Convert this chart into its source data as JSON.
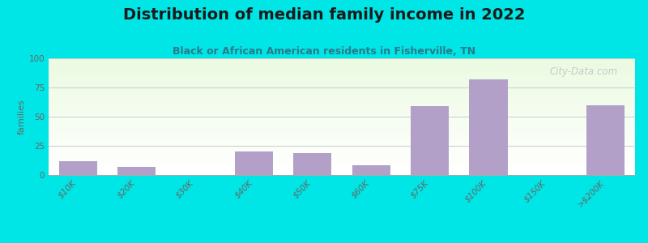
{
  "title": "Distribution of median family income in 2022",
  "subtitle": "Black or African American residents in Fisherville, TN",
  "ylabel": "families",
  "categories": [
    "$10K",
    "$20K",
    "$30K",
    "$40K",
    "$50K",
    "$60K",
    "$75K",
    "$100K",
    "$150K",
    ">$200K"
  ],
  "values": [
    12,
    7,
    0,
    20,
    19,
    8,
    59,
    82,
    0,
    60
  ],
  "bar_color": "#b3a0c8",
  "bg_outer": "#00e5e5",
  "bg_plot_color": "#e8f2e0",
  "title_color": "#1a1a1a",
  "subtitle_color": "#2a7a8a",
  "axis_color": "#666666",
  "grid_color": "#cccccc",
  "ylim": [
    0,
    100
  ],
  "yticks": [
    0,
    25,
    50,
    75,
    100
  ],
  "watermark": "City-Data.com",
  "title_fontsize": 14,
  "subtitle_fontsize": 9,
  "tick_fontsize": 7.5
}
